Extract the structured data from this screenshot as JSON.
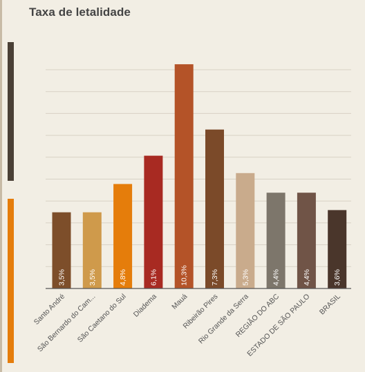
{
  "chart_data": {
    "type": "bar",
    "title": "Taxa de letalidade",
    "categories": [
      "Santo André",
      "São Bernardo do Cam...",
      "São Caetano do Sul",
      "Diadema",
      "Mauá",
      "Ribeirão Pires",
      "Rio Grande da Serra",
      "REGIÃO DO ABC",
      "ESTADO DE SÃO PAULO",
      "BRASIL"
    ],
    "values": [
      3.5,
      3.5,
      4.8,
      6.1,
      10.3,
      7.3,
      5.3,
      4.4,
      4.4,
      3.6
    ],
    "value_labels": [
      "3,5%",
      "3,5%",
      "4,8%",
      "6,1%",
      "10,3%",
      "7,3%",
      "5,3%",
      "4,4%",
      "4,4%",
      "3,6%"
    ],
    "colors": [
      "#7d4e2a",
      "#cf9a4b",
      "#e57d0b",
      "#a82a22",
      "#b45328",
      "#7b4a29",
      "#c9ab8c",
      "#7d766b",
      "#705447",
      "#4a362b"
    ],
    "ylim": [
      0,
      11
    ],
    "grid": true,
    "xlabel": "",
    "ylabel": ""
  },
  "decor": {
    "background": "#f2eee4",
    "gridline_color": "#d8d1c4",
    "axis_color": "#555555",
    "side_bar_colors": [
      "#4a4036",
      "#e57d0b"
    ]
  }
}
